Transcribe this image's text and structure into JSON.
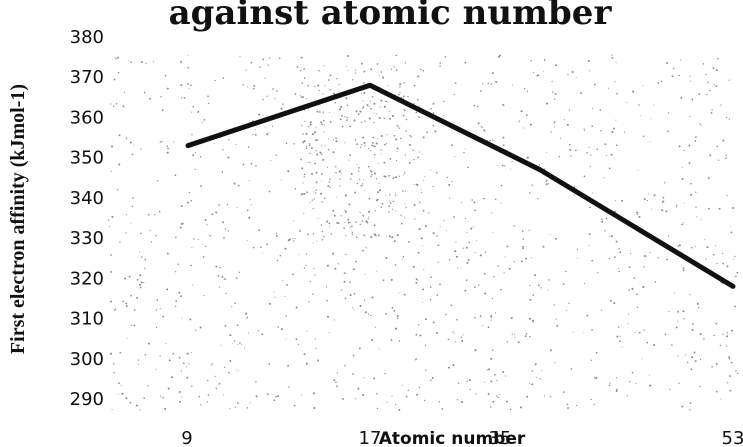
{
  "chart_data": {
    "type": "line",
    "title": "against atomic number",
    "xlabel": "Atomic number",
    "ylabel": "First electron affinity (kJmol-1)",
    "categories": [
      "9",
      "17",
      "35",
      "53"
    ],
    "series": [
      {
        "values": [
          353,
          368,
          347,
          318
        ],
        "color": "#111111"
      }
    ],
    "ylim": [
      290,
      380
    ],
    "yticks": [
      290,
      300,
      310,
      320,
      330,
      340,
      350,
      360,
      370,
      380
    ],
    "grid": false,
    "legend": "none"
  }
}
